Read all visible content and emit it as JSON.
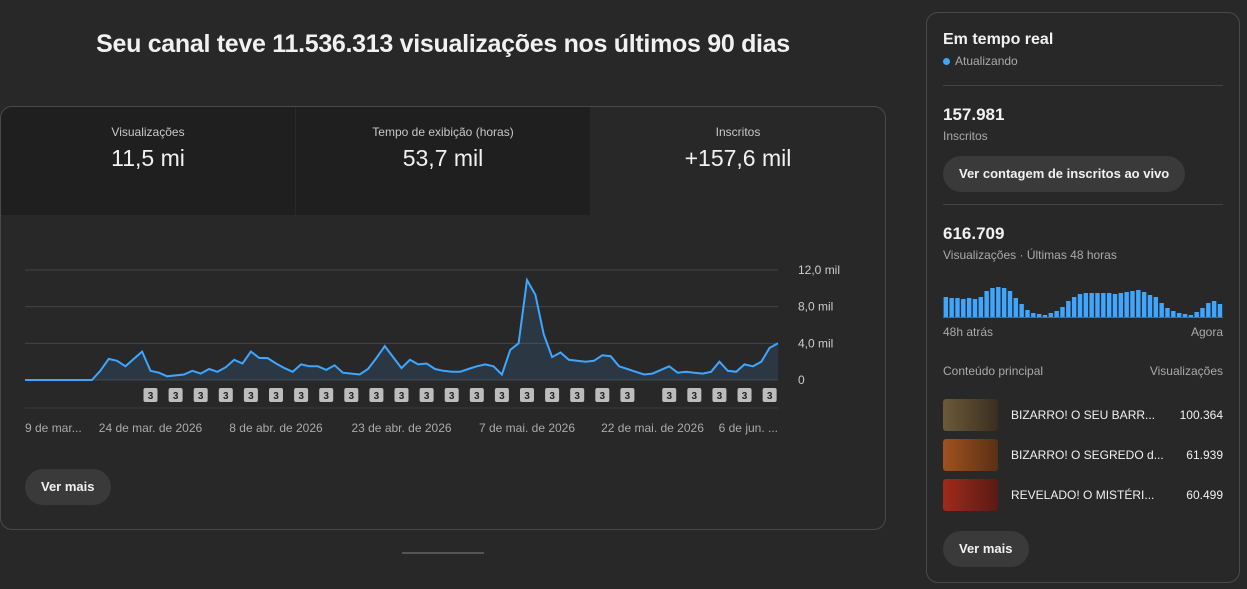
{
  "header": {
    "title": "Seu canal teve 11.536.313 visualizações nos últimos 90 dias"
  },
  "metrics": [
    {
      "label": "Visualizações",
      "value": "11,5 mi"
    },
    {
      "label": "Tempo de exibição (horas)",
      "value": "53,7 mil"
    },
    {
      "label": "Inscritos",
      "value": "+157,6 mil"
    }
  ],
  "chart_data": {
    "type": "line",
    "color": "#3ea6ff",
    "categories": [
      "9 de mar...",
      null,
      null,
      null,
      null,
      null,
      null,
      null,
      null,
      null,
      null,
      null,
      null,
      null,
      null,
      "24 de mar. de 2026",
      null,
      null,
      null,
      null,
      null,
      null,
      null,
      null,
      null,
      null,
      null,
      null,
      null,
      null,
      "8 de abr. de 2026",
      null,
      null,
      null,
      null,
      null,
      null,
      null,
      null,
      null,
      null,
      null,
      null,
      null,
      null,
      "23 de abr. de 2026",
      null,
      null,
      null,
      null,
      null,
      null,
      null,
      null,
      null,
      null,
      null,
      null,
      null,
      null,
      "7 de mai. de 2026",
      null,
      null,
      null,
      null,
      null,
      null,
      null,
      null,
      null,
      null,
      null,
      null,
      null,
      null,
      "22 de mai. de 2026",
      null,
      null,
      null,
      null,
      null,
      null,
      null,
      null,
      null,
      null,
      null,
      null,
      null,
      null,
      "6 de jun. ..."
    ],
    "values": [
      0,
      0,
      0,
      0,
      0,
      0,
      0,
      0,
      0,
      1000,
      2300,
      2100,
      1500,
      2300,
      3100,
      1000,
      800,
      400,
      500,
      600,
      1000,
      700,
      1200,
      900,
      1400,
      2200,
      1800,
      3100,
      2400,
      2400,
      1800,
      1300,
      900,
      1700,
      1500,
      1500,
      1100,
      1600,
      800,
      700,
      600,
      1200,
      2400,
      3700,
      2500,
      1300,
      2200,
      1700,
      1800,
      1200,
      1000,
      900,
      900,
      1200,
      1500,
      1700,
      1500,
      600,
      3300,
      4000,
      10900,
      9300,
      5000,
      2500,
      3000,
      2200,
      2100,
      2000,
      2100,
      2700,
      2600,
      1500,
      1200,
      900,
      600,
      700,
      1100,
      1500,
      800,
      900,
      800,
      700,
      900,
      2000,
      1000,
      900,
      1700,
      1500,
      2000,
      3500,
      4000
    ],
    "ylim": [
      0,
      12000
    ],
    "yticks": [
      0,
      {
        "value": 4000,
        "label": "4,0 mil"
      },
      {
        "value": 8000,
        "label": "8,0 mil"
      },
      {
        "value": 12000,
        "label": "12,0 mil"
      }
    ],
    "grid": true,
    "marker_label": "3",
    "marker_x": [
      15,
      18,
      21,
      24,
      27,
      30,
      33,
      36,
      39,
      42,
      45,
      48,
      51,
      54,
      57,
      60,
      63,
      66,
      69,
      72,
      77,
      80,
      83,
      86,
      89
    ]
  },
  "buttons": {
    "more_left": "Ver mais",
    "more_right": "Ver mais",
    "live_count": "Ver contagem de inscritos ao vivo"
  },
  "realtime": {
    "title": "Em tempo real",
    "status": "Atualizando",
    "subscribers": "157.981",
    "subscribers_label": "Inscritos",
    "views": "616.709",
    "views_label": "Visualizações · Últimas 48 horas",
    "bars": [
      20,
      19,
      19,
      18,
      19,
      18,
      20,
      26,
      29,
      30,
      29,
      26,
      19,
      13,
      7,
      4,
      3,
      2,
      4,
      6,
      10,
      16,
      20,
      23,
      24,
      24,
      24,
      24,
      24,
      23,
      24,
      25,
      26,
      27,
      25,
      22,
      20,
      14,
      9,
      6,
      4,
      3,
      2,
      5,
      9,
      14,
      16,
      13
    ],
    "start_label": "48h atrás",
    "end_label": "Agora",
    "top_header": "Conteúdo principal",
    "top_header_views": "Visualizações",
    "top": [
      {
        "title": "BIZARRO! O SEU BARR...",
        "views": "100.364"
      },
      {
        "title": "BIZARRO! O SEGREDO d...",
        "views": "61.939"
      },
      {
        "title": "REVELADO! O MISTÉRI...",
        "views": "60.499"
      }
    ]
  }
}
